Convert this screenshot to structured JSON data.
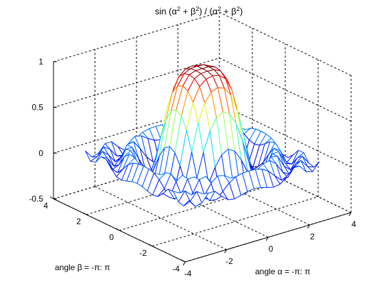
{
  "chart_data": {
    "type": "surface-mesh",
    "title": {
      "prefix": "sin (α",
      "exp1": "2",
      "mid1": " + β",
      "exp2": "2",
      "mid2": ") / (α",
      "exp3": "2",
      "mid3": " + β",
      "exp4": "2",
      "suffix": ")"
    },
    "xlabel": "angle α = -π: π",
    "ylabel": "angle β = -π: π",
    "function": "sin(x^2 + y^2) / (x^2 + y^2)",
    "x_range": [
      -3.14159,
      3.14159
    ],
    "y_range": [
      -3.14159,
      3.14159
    ],
    "grid_points": 21,
    "xlim": [
      -4,
      4
    ],
    "ylim": [
      -4,
      4
    ],
    "zlim": [
      -0.5,
      1
    ],
    "x_ticks": [
      -4,
      -2,
      0,
      2,
      4
    ],
    "y_ticks": [
      -4,
      -2,
      0,
      2,
      4
    ],
    "z_ticks": [
      -0.5,
      0,
      0.5,
      1
    ],
    "x_tick_labels": [
      "-4",
      "-2",
      "0",
      "2",
      "4"
    ],
    "y_tick_labels": [
      "-4",
      "-2",
      "0",
      "2",
      "4"
    ],
    "z_tick_labels": [
      "-0.5",
      "0",
      "0.5",
      "1"
    ],
    "grid": true,
    "box": true,
    "colormap": "jet"
  }
}
